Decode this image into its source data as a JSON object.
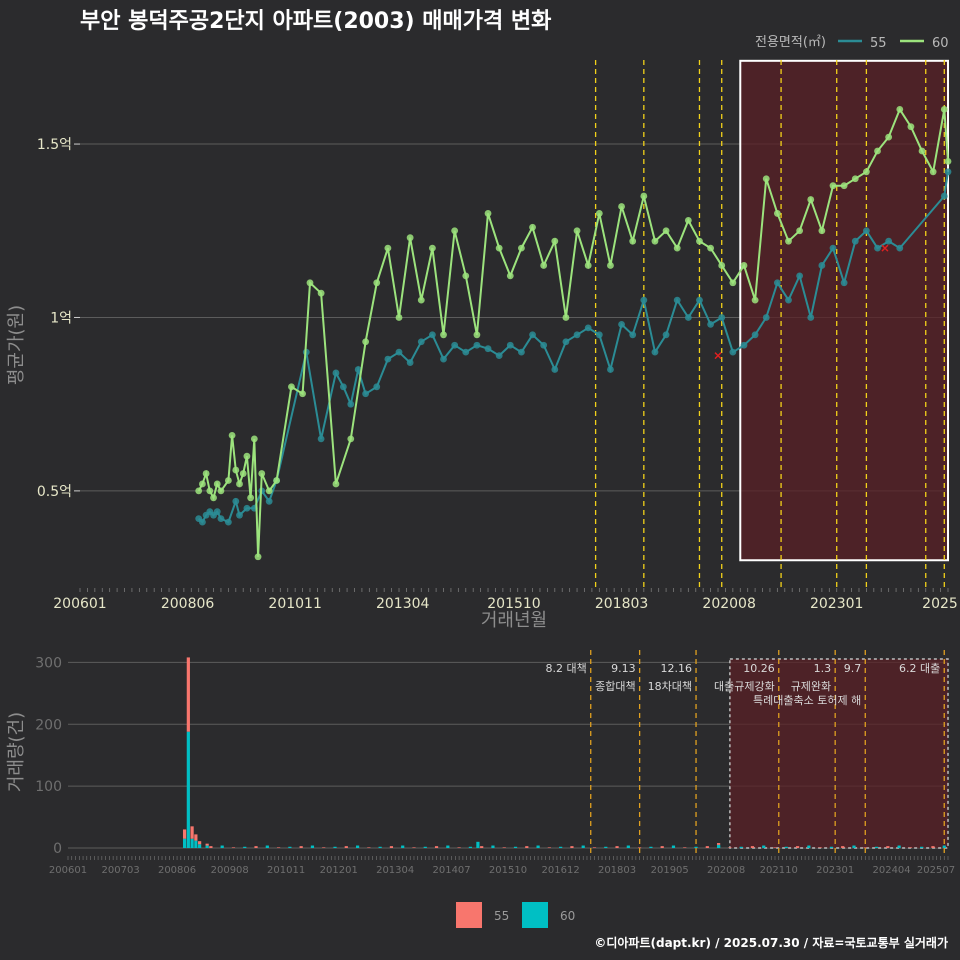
{
  "title": "부안 봉덕주공2단지 아파트(2003) 매매가격 변화",
  "footer": "©디아파트(dapt.kr) / 2025.07.30 / 자료=국토교통부 실거래가",
  "colors": {
    "background": "#2b2b2d",
    "series55_line": "#2b8c95",
    "series60_line": "#9ce37d",
    "bar55": "#f8766d",
    "bar60": "#00bfc4",
    "policy_line": "#f2d21a",
    "policy_line_bottom": "#e0a020",
    "highlight_fill": "#5a2025",
    "highlight_border": "#ffffff"
  },
  "chart_data": [
    {
      "type": "line",
      "title": "부안 봉덕주공2단지 아파트(2003) 매매가격 변화",
      "xlabel": "거래년월",
      "ylabel": "평균가(원)",
      "legend_title": "전용면적(㎡)",
      "legend_position": "top-right",
      "x_ticks": [
        "200601",
        "200806",
        "201011",
        "201304",
        "201510",
        "201803",
        "202008",
        "202301",
        "2025"
      ],
      "y_ticks": [
        {
          "value": 0.5,
          "label": "0.5억"
        },
        {
          "value": 1.0,
          "label": "1억"
        },
        {
          "value": 1.5,
          "label": "1.5억"
        }
      ],
      "ylim": [
        0.22,
        1.8
      ],
      "xlim": [
        "2006-01",
        "2025-07"
      ],
      "grid": true,
      "highlight_range": {
        "from": "2020-11",
        "to": "2025-07",
        "y_from": 0.3,
        "y_to": 1.74
      },
      "policy_dates": [
        "2017-08",
        "2018-09",
        "2019-12",
        "2020-06",
        "2021-10",
        "2023-01",
        "2023-09",
        "2025-01",
        "2025-06"
      ],
      "series": [
        {
          "name": "55",
          "points": [
            [
              "2008-09",
              0.42
            ],
            [
              "2008-10",
              0.41
            ],
            [
              "2008-11",
              0.43
            ],
            [
              "2008-12",
              0.44
            ],
            [
              "2009-01",
              0.43
            ],
            [
              "2009-02",
              0.44
            ],
            [
              "2009-03",
              0.42
            ],
            [
              "2009-05",
              0.41
            ],
            [
              "2009-07",
              0.47
            ],
            [
              "2009-08",
              0.43
            ],
            [
              "2009-10",
              0.45
            ],
            [
              "2009-12",
              0.45
            ],
            [
              "2010-02",
              0.5
            ],
            [
              "2010-04",
              0.47
            ],
            [
              "2010-06",
              0.53
            ],
            [
              "2011-02",
              0.9
            ],
            [
              "2011-06",
              0.65
            ],
            [
              "2011-10",
              0.84
            ],
            [
              "2011-12",
              0.8
            ],
            [
              "2012-02",
              0.75
            ],
            [
              "2012-04",
              0.85
            ],
            [
              "2012-06",
              0.78
            ],
            [
              "2012-09",
              0.8
            ],
            [
              "2012-12",
              0.88
            ],
            [
              "2013-03",
              0.9
            ],
            [
              "2013-06",
              0.87
            ],
            [
              "2013-09",
              0.93
            ],
            [
              "2013-12",
              0.95
            ],
            [
              "2014-03",
              0.88
            ],
            [
              "2014-06",
              0.92
            ],
            [
              "2014-09",
              0.9
            ],
            [
              "2014-12",
              0.92
            ],
            [
              "2015-03",
              0.91
            ],
            [
              "2015-06",
              0.89
            ],
            [
              "2015-09",
              0.92
            ],
            [
              "2015-12",
              0.9
            ],
            [
              "2016-03",
              0.95
            ],
            [
              "2016-06",
              0.92
            ],
            [
              "2016-09",
              0.85
            ],
            [
              "2016-12",
              0.93
            ],
            [
              "2017-03",
              0.95
            ],
            [
              "2017-06",
              0.97
            ],
            [
              "2017-09",
              0.95
            ],
            [
              "2017-12",
              0.85
            ],
            [
              "2018-03",
              0.98
            ],
            [
              "2018-06",
              0.95
            ],
            [
              "2018-09",
              1.05
            ],
            [
              "2018-12",
              0.9
            ],
            [
              "2019-03",
              0.95
            ],
            [
              "2019-06",
              1.05
            ],
            [
              "2019-09",
              1.0
            ],
            [
              "2019-12",
              1.05
            ],
            [
              "2020-03",
              0.98
            ],
            [
              "2020-06",
              1.0
            ],
            [
              "2020-09",
              0.9
            ],
            [
              "2020-12",
              0.92
            ],
            [
              "2021-03",
              0.95
            ],
            [
              "2021-06",
              1.0
            ],
            [
              "2021-09",
              1.1
            ],
            [
              "2021-12",
              1.05
            ],
            [
              "2022-03",
              1.12
            ],
            [
              "2022-06",
              1.0
            ],
            [
              "2022-09",
              1.15
            ],
            [
              "2022-12",
              1.2
            ],
            [
              "2023-03",
              1.1
            ],
            [
              "2023-06",
              1.22
            ],
            [
              "2023-09",
              1.25
            ],
            [
              "2023-12",
              1.2
            ],
            [
              "2024-03",
              1.22
            ],
            [
              "2024-06",
              1.2
            ],
            [
              "2025-06",
              1.35
            ],
            [
              "2025-07",
              1.42
            ]
          ]
        },
        {
          "name": "60",
          "points": [
            [
              "2008-09",
              0.5
            ],
            [
              "2008-10",
              0.52
            ],
            [
              "2008-11",
              0.55
            ],
            [
              "2008-12",
              0.5
            ],
            [
              "2009-01",
              0.48
            ],
            [
              "2009-02",
              0.52
            ],
            [
              "2009-03",
              0.5
            ],
            [
              "2009-05",
              0.53
            ],
            [
              "2009-06",
              0.66
            ],
            [
              "2009-07",
              0.56
            ],
            [
              "2009-08",
              0.52
            ],
            [
              "2009-09",
              0.55
            ],
            [
              "2009-10",
              0.6
            ],
            [
              "2009-11",
              0.48
            ],
            [
              "2009-12",
              0.65
            ],
            [
              "2010-01",
              0.31
            ],
            [
              "2010-02",
              0.55
            ],
            [
              "2010-04",
              0.5
            ],
            [
              "2010-06",
              0.53
            ],
            [
              "2010-10",
              0.8
            ],
            [
              "2011-01",
              0.78
            ],
            [
              "2011-03",
              1.1
            ],
            [
              "2011-06",
              1.07
            ],
            [
              "2011-10",
              0.52
            ],
            [
              "2012-02",
              0.65
            ],
            [
              "2012-06",
              0.93
            ],
            [
              "2012-09",
              1.1
            ],
            [
              "2012-12",
              1.2
            ],
            [
              "2013-03",
              1.0
            ],
            [
              "2013-06",
              1.23
            ],
            [
              "2013-09",
              1.05
            ],
            [
              "2013-12",
              1.2
            ],
            [
              "2014-03",
              0.95
            ],
            [
              "2014-06",
              1.25
            ],
            [
              "2014-09",
              1.12
            ],
            [
              "2014-12",
              0.95
            ],
            [
              "2015-03",
              1.3
            ],
            [
              "2015-06",
              1.2
            ],
            [
              "2015-09",
              1.12
            ],
            [
              "2015-12",
              1.2
            ],
            [
              "2016-03",
              1.26
            ],
            [
              "2016-06",
              1.15
            ],
            [
              "2016-09",
              1.22
            ],
            [
              "2016-12",
              1.0
            ],
            [
              "2017-03",
              1.25
            ],
            [
              "2017-06",
              1.15
            ],
            [
              "2017-09",
              1.3
            ],
            [
              "2017-12",
              1.15
            ],
            [
              "2018-03",
              1.32
            ],
            [
              "2018-06",
              1.22
            ],
            [
              "2018-09",
              1.35
            ],
            [
              "2018-12",
              1.22
            ],
            [
              "2019-03",
              1.25
            ],
            [
              "2019-06",
              1.2
            ],
            [
              "2019-09",
              1.28
            ],
            [
              "2019-12",
              1.22
            ],
            [
              "2020-03",
              1.2
            ],
            [
              "2020-06",
              1.15
            ],
            [
              "2020-09",
              1.1
            ],
            [
              "2020-12",
              1.15
            ],
            [
              "2021-03",
              1.05
            ],
            [
              "2021-06",
              1.4
            ],
            [
              "2021-09",
              1.3
            ],
            [
              "2021-12",
              1.22
            ],
            [
              "2022-03",
              1.25
            ],
            [
              "2022-06",
              1.34
            ],
            [
              "2022-09",
              1.25
            ],
            [
              "2022-12",
              1.38
            ],
            [
              "2023-03",
              1.38
            ],
            [
              "2023-06",
              1.4
            ],
            [
              "2023-09",
              1.42
            ],
            [
              "2023-12",
              1.48
            ],
            [
              "2024-03",
              1.52
            ],
            [
              "2024-06",
              1.6
            ],
            [
              "2024-09",
              1.55
            ],
            [
              "2024-12",
              1.48
            ],
            [
              "2025-03",
              1.42
            ],
            [
              "2025-06",
              1.6
            ],
            [
              "2025-07",
              1.45
            ]
          ]
        }
      ],
      "outliers": [
        [
          "2020-05",
          0.89
        ],
        [
          "2024-02",
          1.2
        ]
      ]
    },
    {
      "type": "bar",
      "ylabel": "거래량(건)",
      "legend_position": "bottom",
      "x_ticks": [
        "200601",
        "200703",
        "200806",
        "200908",
        "201011",
        "201201",
        "201304",
        "201407",
        "201510",
        "201612",
        "201803",
        "201905",
        "202008",
        "202110",
        "202301",
        "202404",
        "202507"
      ],
      "y_ticks": [
        0,
        100,
        200,
        300
      ],
      "ylim": [
        0,
        320
      ],
      "policies": [
        {
          "date": "2017-08",
          "label": "8.2 대책"
        },
        {
          "date": "2018-09",
          "label": "9.13 종합대책"
        },
        {
          "date": "2019-12",
          "label": "12.16 18차대책"
        },
        {
          "date": "2021-10",
          "label": "10.26 대출규제강화"
        },
        {
          "date": "2023-01",
          "label": "1.3 규제완화"
        },
        {
          "date": "2023-09",
          "label": "9.7 특례대출축소 토허제 해"
        },
        {
          "date": "2025-06",
          "label": "6.2 대출"
        }
      ],
      "series": [
        {
          "name": "55",
          "stacks": [
            [
              "2008-08",
              15
            ],
            [
              "2008-09",
              120
            ],
            [
              "2008-10",
              20
            ],
            [
              "2008-11",
              10
            ],
            [
              "2008-12",
              5
            ],
            [
              "2009-02",
              3
            ],
            [
              "2020-06",
              3
            ]
          ]
        },
        {
          "name": "60",
          "stacks": [
            [
              "2008-08",
              15
            ],
            [
              "2008-09",
              188
            ],
            [
              "2008-10",
              15
            ],
            [
              "2008-11",
              12
            ],
            [
              "2008-12",
              6
            ],
            [
              "2009-02",
              4
            ],
            [
              "2015-02",
              10
            ],
            [
              "2020-06",
              5
            ]
          ]
        }
      ]
    }
  ]
}
